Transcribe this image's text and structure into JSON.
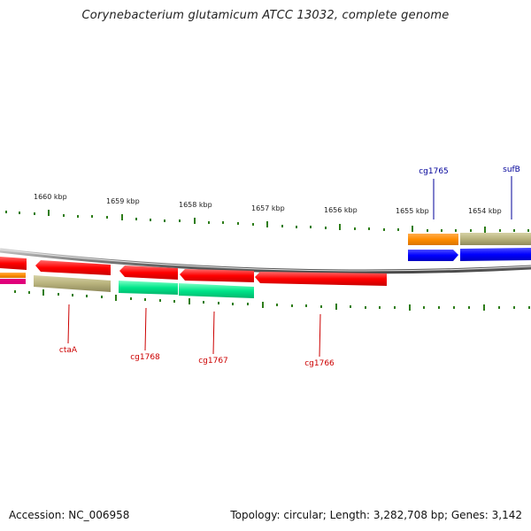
{
  "title": "Corynebacterium glutamicum ATCC 13032, complete genome",
  "footer": {
    "accession": "Accession: NC_006958",
    "summary": "Topology: circular; Length: 3,282,708 bp; Genes: 3,142"
  },
  "axis": {
    "unit": "kbp",
    "labels": [
      "1660 kbp",
      "1659 kbp",
      "1658 kbp",
      "1657 kbp",
      "1656 kbp",
      "1655 kbp",
      "1654 kbp"
    ]
  },
  "colors": {
    "forward_top_a": "#ff8c00",
    "forward_top_b": "#b8b27c",
    "forward_blue": "#0000ff",
    "reverse_red": "#ff0000",
    "reverse_green": "#00e68a",
    "reverse_khaki": "#b8b27c",
    "tick_green": "#2e7d1a",
    "backbone": "#8a8a8a",
    "label_red": "#cc0000",
    "label_blue": "#000099"
  },
  "genes": [
    {
      "name": "cg1765",
      "strand": "+",
      "track": "upper",
      "color": "forward_top_a"
    },
    {
      "name": "sufB",
      "strand": "+",
      "track": "upper",
      "color": "forward_top_b"
    },
    {
      "name": "ctaA",
      "strand": "-",
      "track": "lower",
      "color": "reverse_khaki"
    },
    {
      "name": "cg1768",
      "strand": "-",
      "track": "lower",
      "color": "reverse_green"
    },
    {
      "name": "cg1767",
      "strand": "-",
      "track": "lower",
      "color": "reverse_green"
    },
    {
      "name": "cg1766",
      "strand": "-",
      "track": "reverse",
      "color": "reverse_red"
    }
  ]
}
